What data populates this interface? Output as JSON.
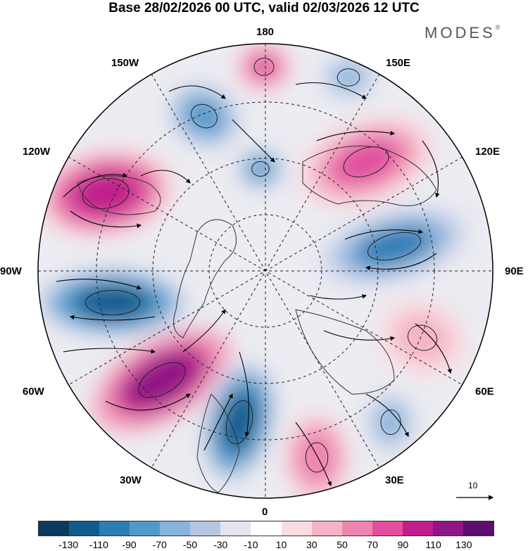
{
  "title": "Base 28/02/2026 00 UTC, valid 02/03/2026 12 UTC",
  "brand": "MODES",
  "brand_mark": "®",
  "longitude_labels": {
    "top": "180",
    "upper_left": "150W",
    "upper_right": "150E",
    "mid_left_upper": "120W",
    "mid_right_upper": "120E",
    "left": "90W",
    "right": "90E",
    "mid_left_lower": "60W",
    "mid_right_lower": "60E",
    "lower_left": "30W",
    "lower_right": "30E",
    "bottom": "0"
  },
  "vector_scale": {
    "value": "10"
  },
  "colorbar": {
    "ticks": [
      "-130",
      "-110",
      "-90",
      "-70",
      "-50",
      "-30",
      "-10",
      "10",
      "30",
      "50",
      "70",
      "90",
      "110",
      "130"
    ],
    "colors": [
      "#0b3a5e",
      "#115c8d",
      "#2a7db5",
      "#4f9acb",
      "#86b4dc",
      "#b5c6e3",
      "#e3e4f0",
      "#ffffff",
      "#f9dbe0",
      "#f5b3c6",
      "#ee84b0",
      "#e0509e",
      "#bf1e8c",
      "#8f1684",
      "#5c0d6e"
    ]
  },
  "anomalies": [
    {
      "name": "positive-anomaly-north-pacific",
      "value": 110
    },
    {
      "name": "negative-anomaly-gulf-of-alaska",
      "value": -70
    },
    {
      "name": "positive-anomaly-alaska-west",
      "value": 90
    },
    {
      "name": "negative-anomaly-canada",
      "value": -110
    },
    {
      "name": "positive-anomaly-north-atlantic",
      "value": 130
    },
    {
      "name": "negative-anomaly-east-atlantic",
      "value": -110
    },
    {
      "name": "positive-anomaly-europe",
      "value": 70
    },
    {
      "name": "negative-anomaly-mediterranean",
      "value": -50
    },
    {
      "name": "positive-anomaly-central-asia",
      "value": 50
    },
    {
      "name": "negative-anomaly-east-asia",
      "value": -90
    },
    {
      "name": "positive-anomaly-siberia",
      "value": 90
    },
    {
      "name": "negative-anomaly-bering",
      "value": -50
    },
    {
      "name": "negative-anomaly-chukchi",
      "value": -70
    }
  ]
}
